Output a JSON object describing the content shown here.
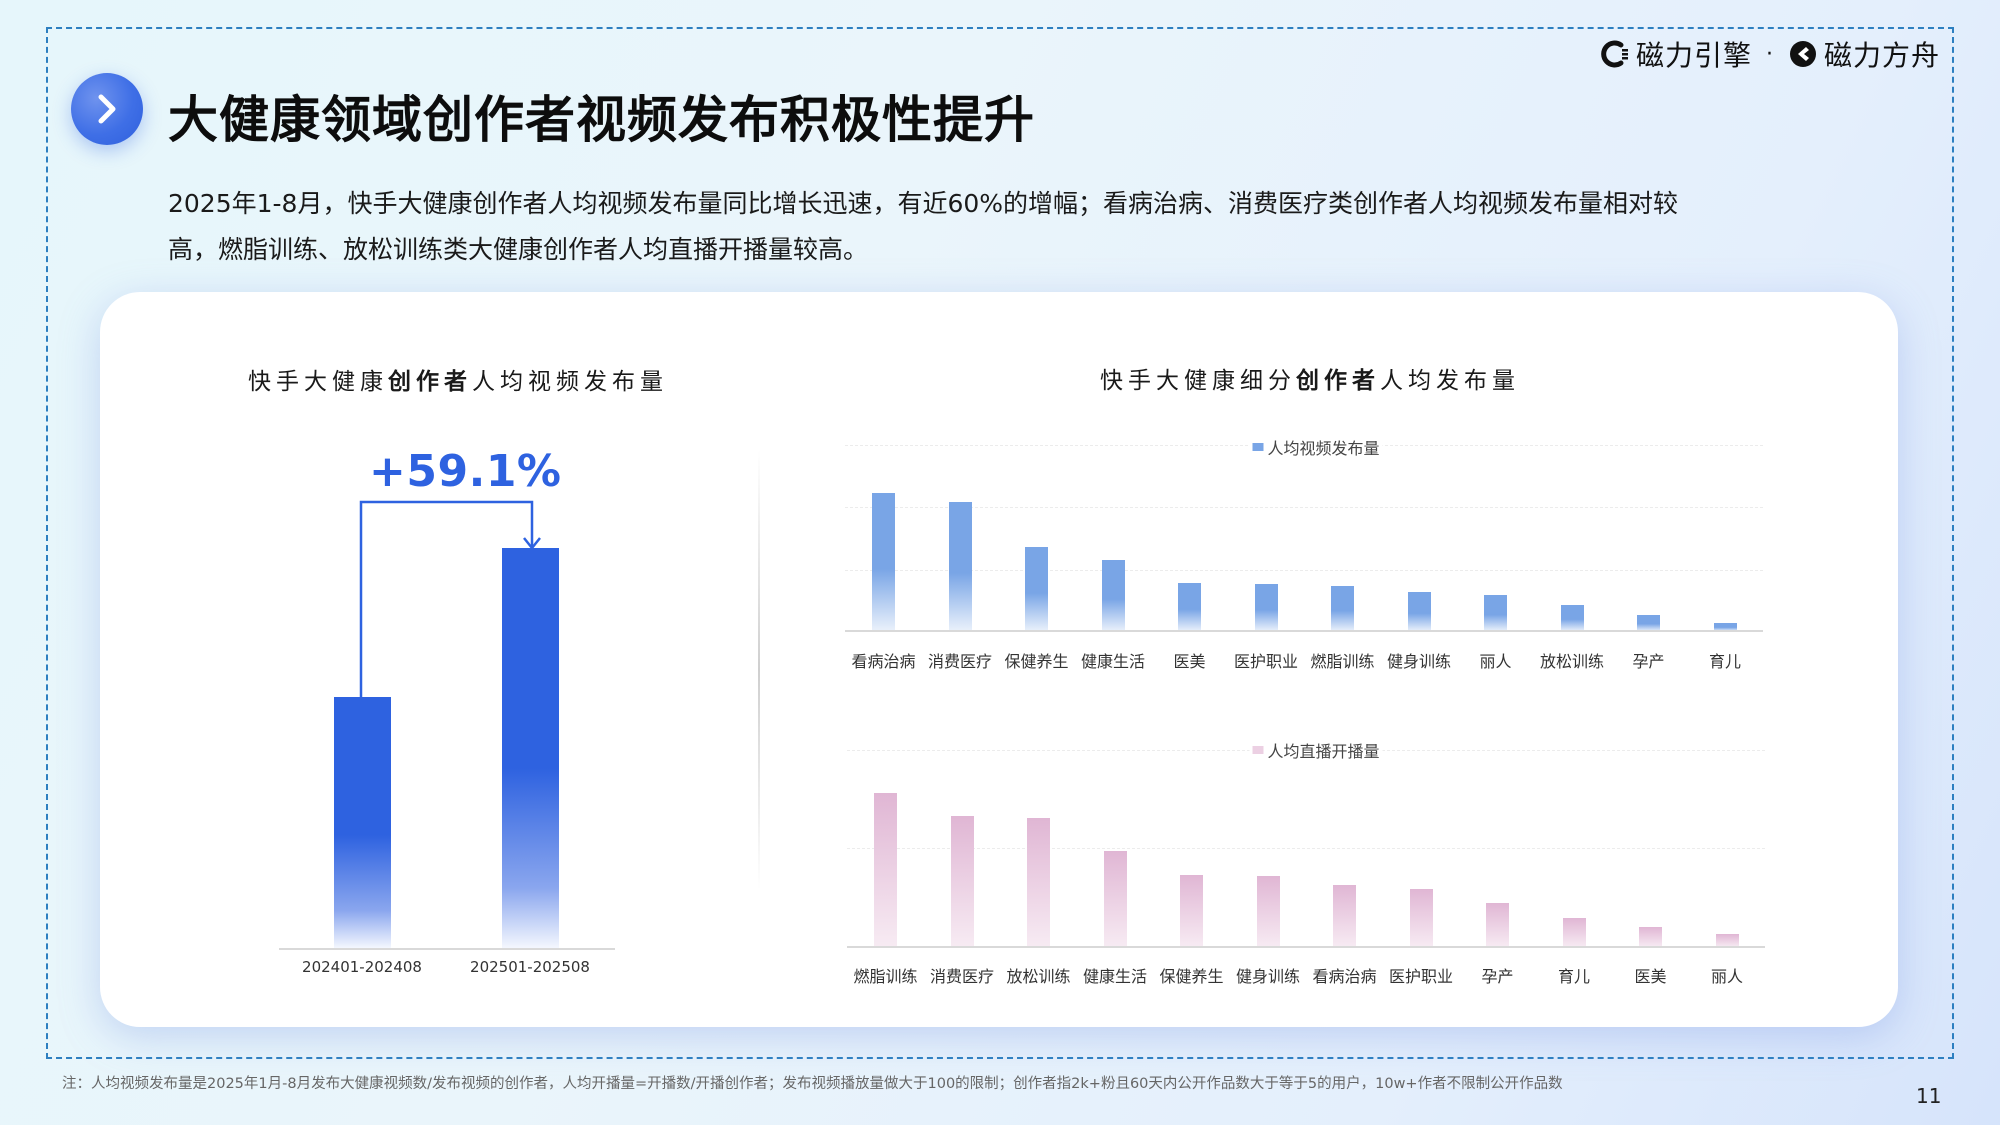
{
  "header": {
    "logo": {
      "brand1": "磁力引擎",
      "separator": "·",
      "brand2": "磁力方舟"
    },
    "title_icon": "chevron-right-icon",
    "title": "大健康领域创作者视频发布积极性提升"
  },
  "description": {
    "line1": "2025年1-8月，快手大健康创作者人均视频发布量同比增长迅速，有近60%的增幅；看病治病、消费医疗类创作者人均视频发布量相对较",
    "line2": "高，燃脂训练、放松训练类大健康创作者人均直播开播量较高。"
  },
  "left_chart": {
    "title_pre": "快手大健康",
    "title_bold": "创作者",
    "title_post": "人均视频发布量",
    "growth_label": "+59.1%",
    "categories": [
      "202401-202408",
      "202501-202508"
    ]
  },
  "right_chart": {
    "title_pre": "快手大健康细分",
    "title_bold": "创作者",
    "title_post": "人均发布量",
    "top": {
      "legend": "人均视频发布量",
      "categories": [
        "看病治病",
        "消费医疗",
        "保健养生",
        "健康生活",
        "医美",
        "医护职业",
        "燃脂训练",
        "健身训练",
        "丽人",
        "放松训练",
        "孕产",
        "育儿"
      ]
    },
    "bottom": {
      "legend": "人均直播开播量",
      "categories": [
        "燃脂训练",
        "消费医疗",
        "放松训练",
        "健康生活",
        "保健养生",
        "健身训练",
        "看病治病",
        "医护职业",
        "孕产",
        "育儿",
        "医美",
        "丽人"
      ]
    }
  },
  "footnote": "注：人均视频发布量是2025年1月-8月发布大健康视频数/发布视频的创作者，人均开播量=开播数/开播创作者；发布视频播放量做大于100的限制；创作者指2k+粉且60天内公开作品数大于等于5的用户，10w+作者不限制公开作品数",
  "page_number": "11",
  "colors": {
    "accent_blue": "#2e62e0",
    "sub_blue": "#79a5e6",
    "pink": "#e0b6d4",
    "frame_dash": "#2d7fc0"
  },
  "chart_data": [
    {
      "type": "bar",
      "title": "快手大健康创作者人均视频发布量",
      "categories": [
        "202401-202408",
        "202501-202508"
      ],
      "values": [
        100,
        159.1
      ],
      "value_note": "relative index (no axis values shown); growth +59.1%",
      "annotation": "+59.1%",
      "xlabel": "",
      "ylabel": "",
      "grid": false
    },
    {
      "type": "bar",
      "title": "快手大健康细分创作者人均发布量",
      "series": [
        {
          "name": "人均视频发布量",
          "values": [
            138,
            129,
            84,
            71,
            48,
            47,
            45,
            39,
            36,
            26,
            16,
            8
          ]
        }
      ],
      "categories": [
        "看病治病",
        "消费医疗",
        "保健养生",
        "健康生活",
        "医美",
        "医护职业",
        "燃脂训练",
        "健身训练",
        "丽人",
        "放松训练",
        "孕产",
        "育儿"
      ],
      "value_note": "relative bar heights in px (no axis values shown)",
      "legend_position": "top",
      "grid": true
    },
    {
      "type": "bar",
      "title": "快手大健康细分创作者人均发布量",
      "series": [
        {
          "name": "人均直播开播量",
          "values": [
            154,
            131,
            129,
            96,
            72,
            71,
            62,
            58,
            44,
            29,
            20,
            13
          ]
        }
      ],
      "categories": [
        "燃脂训练",
        "消费医疗",
        "放松训练",
        "健康生活",
        "保健养生",
        "健身训练",
        "看病治病",
        "医护职业",
        "孕产",
        "育儿",
        "医美",
        "丽人"
      ],
      "value_note": "relative bar heights in px (no axis values shown)",
      "legend_position": "top",
      "grid": true
    }
  ]
}
